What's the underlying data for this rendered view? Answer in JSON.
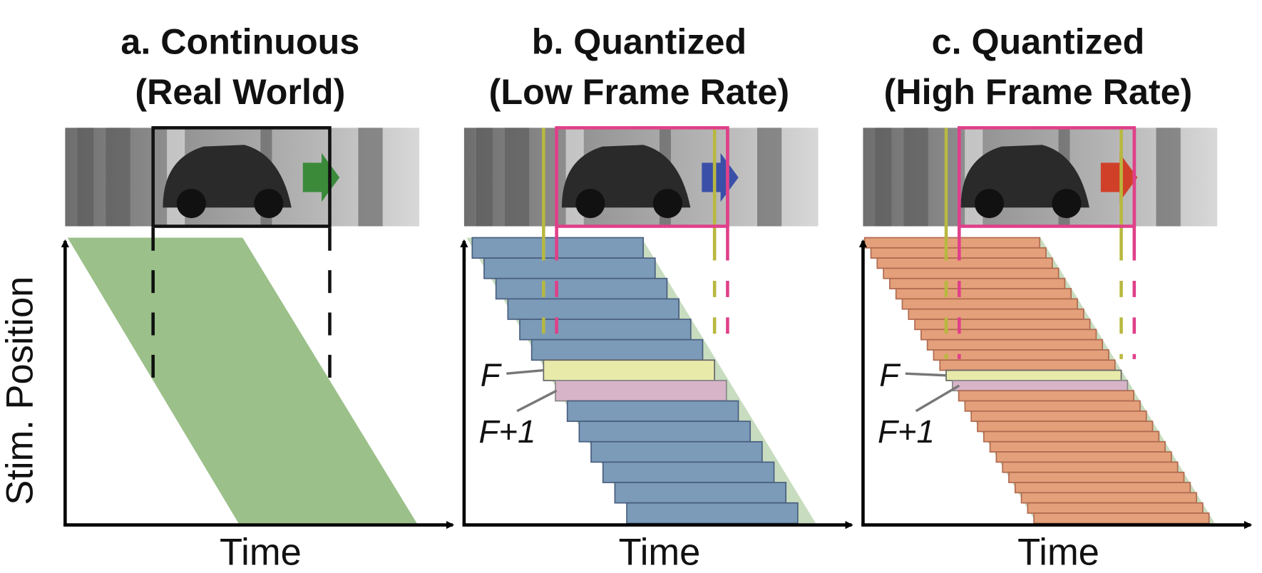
{
  "panels": [
    {
      "title": [
        "a. Continuous",
        "(Real World)"
      ],
      "x_label": "Time"
    },
    {
      "title": [
        "b. Quantized",
        "(Low Frame Rate)"
      ],
      "x_label": "Time",
      "frame_labels": [
        "F",
        "F+1"
      ]
    },
    {
      "title": [
        "c. Quantized",
        "(High Frame Rate)"
      ],
      "x_label": "Time",
      "frame_labels": [
        "F",
        "F+1"
      ]
    }
  ],
  "y_label": "Stim. Position"
}
